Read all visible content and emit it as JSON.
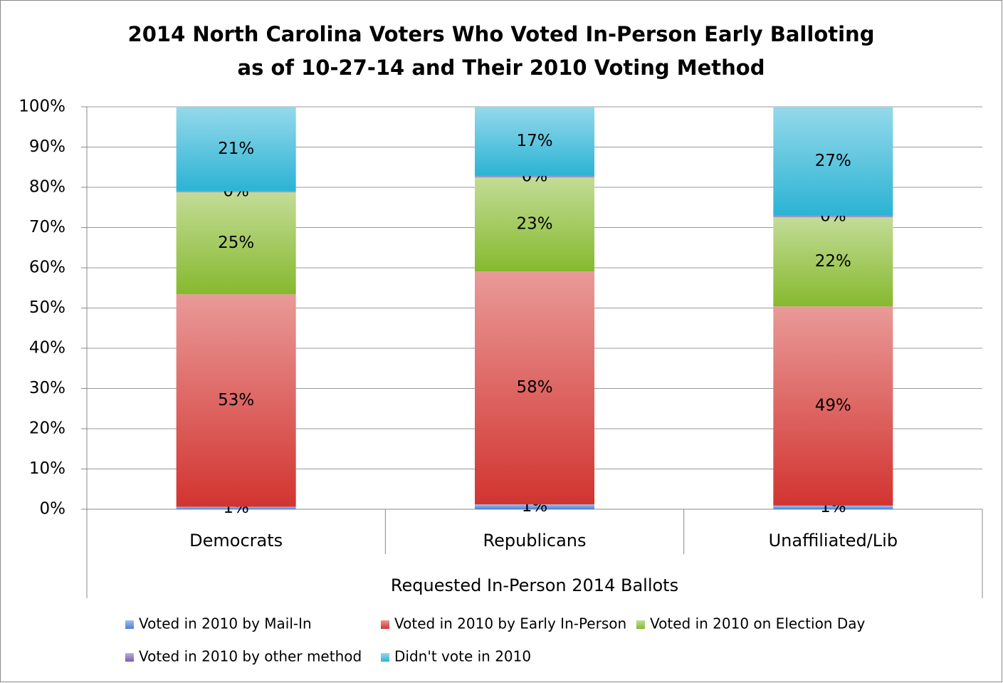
{
  "chart_data": {
    "type": "stacked-bar",
    "title": [
      "2014 North Carolina Voters Who Voted In-Person Early Balloting",
      "as of 10-27-14 and Their 2010 Voting Method"
    ],
    "x_label": "Requested In-Person 2014 Ballots",
    "categories": [
      "Democrats",
      "Republicans",
      "Unaffiliated/Lib"
    ],
    "series": [
      {
        "name": "Voted in 2010 by Mail-In",
        "color": "#4a7fd6",
        "values": [
          0.6,
          1.2,
          0.9
        ],
        "value_labels": [
          "1%",
          "1%",
          "1%"
        ]
      },
      {
        "name": "Voted in 2010 by Early In-Person",
        "color": "#d23430",
        "values": [
          52.8,
          57.9,
          49.5
        ],
        "value_labels": [
          "53%",
          "58%",
          "49%"
        ]
      },
      {
        "name": "Voted in 2010 on Election Day",
        "color": "#86b92e",
        "values": [
          25.4,
          23.4,
          22.2
        ],
        "value_labels": [
          "25%",
          "23%",
          "22%"
        ]
      },
      {
        "name": "Voted in 2010 by other method",
        "color": "#7b5cb5",
        "values": [
          0.2,
          0.3,
          0.3
        ],
        "value_labels": [
          "0%",
          "0%",
          "0%"
        ]
      },
      {
        "name": "Didn't vote in 2010",
        "color": "#2bb3d4",
        "values": [
          21.0,
          17.2,
          27.1
        ],
        "value_labels": [
          "21%",
          "17%",
          "27%"
        ]
      }
    ],
    "ylim": [
      0,
      100
    ],
    "yticks": [
      {
        "value": 0,
        "label": "0%"
      },
      {
        "value": 10,
        "label": "10%"
      },
      {
        "value": 20,
        "label": "20%"
      },
      {
        "value": 30,
        "label": "30%"
      },
      {
        "value": 40,
        "label": "40%"
      },
      {
        "value": 50,
        "label": "50%"
      },
      {
        "value": 60,
        "label": "60%"
      },
      {
        "value": 70,
        "label": "70%"
      },
      {
        "value": 80,
        "label": "80%"
      },
      {
        "value": 90,
        "label": "90%"
      },
      {
        "value": 100,
        "label": "100%"
      }
    ],
    "grid": true
  }
}
